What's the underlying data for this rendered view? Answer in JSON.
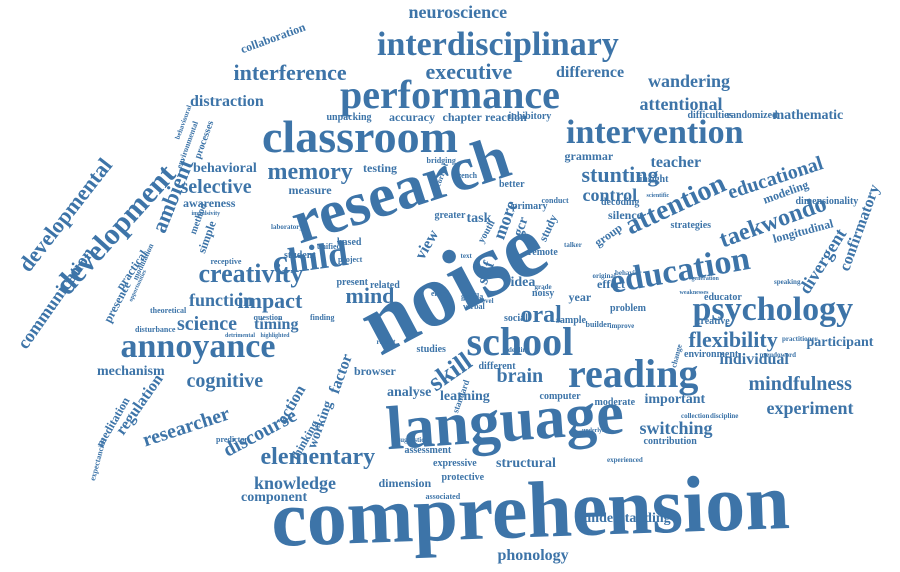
{
  "palette": {
    "word_color": "#3d74a8",
    "background": "#ffffff"
  },
  "words": [
    {
      "text": "comprehension"
    },
    {
      "text": "noise"
    },
    {
      "text": "language"
    },
    {
      "text": "research"
    },
    {
      "text": "classroom"
    },
    {
      "text": "performance"
    },
    {
      "text": "interdisciplinary"
    },
    {
      "text": "school"
    },
    {
      "text": "reading"
    },
    {
      "text": "child"
    },
    {
      "text": "education"
    },
    {
      "text": "psychology"
    },
    {
      "text": "intervention"
    },
    {
      "text": "attention"
    },
    {
      "text": "annoyance"
    },
    {
      "text": "development"
    },
    {
      "text": "developmental"
    },
    {
      "text": "elementary"
    },
    {
      "text": "creativity"
    },
    {
      "text": "memory"
    },
    {
      "text": "interference"
    },
    {
      "text": "executive"
    },
    {
      "text": "neuroscience"
    },
    {
      "text": "taekwondo"
    },
    {
      "text": "communication"
    },
    {
      "text": "flexibility"
    },
    {
      "text": "mindfulness"
    },
    {
      "text": "knowledge"
    },
    {
      "text": "cognitive"
    },
    {
      "text": "impact"
    },
    {
      "text": "mind"
    },
    {
      "text": "oral"
    },
    {
      "text": "skill"
    },
    {
      "text": "brain"
    },
    {
      "text": "discourse"
    },
    {
      "text": "researcher"
    },
    {
      "text": "experiment"
    },
    {
      "text": "stunting"
    },
    {
      "text": "control"
    },
    {
      "text": "educational"
    },
    {
      "text": "selective"
    },
    {
      "text": "ambient"
    },
    {
      "text": "science"
    },
    {
      "text": "function"
    },
    {
      "text": "timing"
    },
    {
      "text": "divergent"
    },
    {
      "text": "confirmatory"
    },
    {
      "text": "attentional"
    },
    {
      "text": "wandering"
    },
    {
      "text": "difference"
    },
    {
      "text": "distraction"
    },
    {
      "text": "collaboration"
    },
    {
      "text": "switching"
    },
    {
      "text": "individual"
    },
    {
      "text": "participant"
    },
    {
      "text": "phonology"
    },
    {
      "text": "understanding"
    },
    {
      "text": "component"
    },
    {
      "text": "structural"
    },
    {
      "text": "mechanism"
    },
    {
      "text": "regulation"
    },
    {
      "text": "teacher"
    },
    {
      "text": "mathematic"
    },
    {
      "text": "behavioral"
    },
    {
      "text": "longitudinal"
    },
    {
      "text": "learning"
    },
    {
      "text": "analyse"
    },
    {
      "text": "important"
    },
    {
      "text": "dimension"
    },
    {
      "text": "grammar"
    },
    {
      "text": "accuracy"
    },
    {
      "text": "chapter"
    },
    {
      "text": "reaction"
    },
    {
      "text": "factor"
    },
    {
      "text": "working"
    },
    {
      "text": "action"
    },
    {
      "text": "meditation"
    },
    {
      "text": "awareness"
    },
    {
      "text": "testing"
    },
    {
      "text": "measure"
    },
    {
      "text": "unpacking"
    },
    {
      "text": "dimensionality"
    },
    {
      "text": "modeling"
    },
    {
      "text": "educator"
    },
    {
      "text": "creative"
    },
    {
      "text": "practical"
    },
    {
      "text": "presence"
    },
    {
      "text": "thinking"
    },
    {
      "text": "simple"
    },
    {
      "text": "method"
    },
    {
      "text": "assessment"
    },
    {
      "text": "expressive"
    },
    {
      "text": "protective"
    },
    {
      "text": "computer"
    },
    {
      "text": "moderate"
    },
    {
      "text": "environment"
    },
    {
      "text": "contribution"
    },
    {
      "text": "sample"
    },
    {
      "text": "problem"
    },
    {
      "text": "effect"
    },
    {
      "text": "year"
    },
    {
      "text": "idea"
    },
    {
      "text": "noisy"
    },
    {
      "text": "remote"
    },
    {
      "text": "primary"
    },
    {
      "text": "more"
    },
    {
      "text": "gcr"
    },
    {
      "text": "view"
    },
    {
      "text": "task"
    },
    {
      "text": "greater"
    },
    {
      "text": "self"
    },
    {
      "text": "social"
    },
    {
      "text": "study"
    },
    {
      "text": "better"
    },
    {
      "text": "silence"
    },
    {
      "text": "group"
    },
    {
      "text": "decoding"
    },
    {
      "text": "strategies"
    },
    {
      "text": "insight"
    },
    {
      "text": "difficulties"
    },
    {
      "text": "randomized"
    },
    {
      "text": "inhibitory"
    },
    {
      "text": "different"
    },
    {
      "text": "browser"
    },
    {
      "text": "studies"
    },
    {
      "text": "present"
    },
    {
      "text": "related"
    },
    {
      "text": "student"
    },
    {
      "text": "based"
    },
    {
      "text": "unified"
    },
    {
      "text": "project"
    },
    {
      "text": "receptive"
    },
    {
      "text": "theoretical"
    },
    {
      "text": "disturbance"
    },
    {
      "text": "expectancies"
    },
    {
      "text": "finding"
    },
    {
      "text": "question"
    },
    {
      "text": "associated"
    },
    {
      "text": "predictor"
    },
    {
      "text": "detrimental"
    },
    {
      "text": "highlighted"
    },
    {
      "text": "collection"
    },
    {
      "text": "discipline"
    },
    {
      "text": "change"
    },
    {
      "text": "experienced"
    },
    {
      "text": "builder"
    },
    {
      "text": "improve"
    },
    {
      "text": "speaking"
    },
    {
      "text": "practitioner"
    },
    {
      "text": "pseudoword"
    },
    {
      "text": "generation"
    },
    {
      "text": "weaknesses"
    },
    {
      "text": "scientific"
    },
    {
      "text": "processes"
    },
    {
      "text": "environmental"
    },
    {
      "text": "behavioural"
    },
    {
      "text": "laboratory"
    },
    {
      "text": "gorilla"
    },
    {
      "text": "verbal"
    },
    {
      "text": "entry"
    },
    {
      "text": "text"
    },
    {
      "text": "level"
    },
    {
      "text": "dealing"
    },
    {
      "text": "talker"
    },
    {
      "text": "grade"
    },
    {
      "text": "original"
    },
    {
      "text": "behavior"
    },
    {
      "text": "correct"
    },
    {
      "text": "conduct"
    },
    {
      "text": "bridging"
    },
    {
      "text": "french"
    },
    {
      "text": "suggestion"
    },
    {
      "text": "underlying"
    },
    {
      "text": "modulation"
    },
    {
      "text": "opportunities"
    },
    {
      "text": "impulsivity"
    },
    {
      "text": "youth"
    },
    {
      "text": "standard"
    },
    {
      "text": "report"
    },
    {
      "text": "network"
    }
  ]
}
